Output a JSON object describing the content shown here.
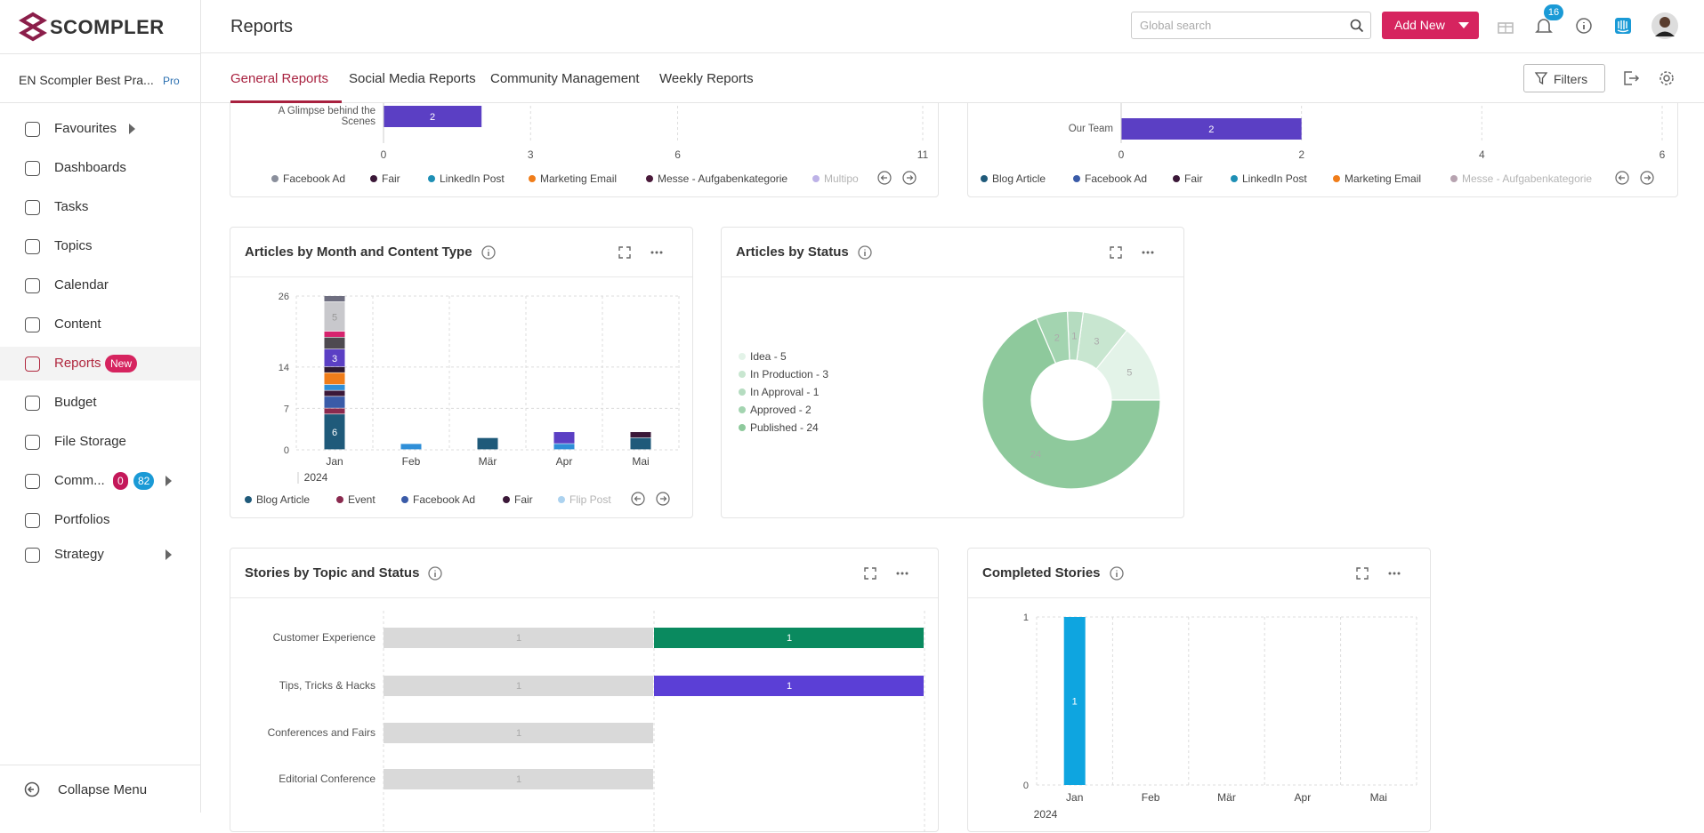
{
  "header": {
    "logo": "SCOMPLER",
    "title": "Reports",
    "search_placeholder": "Global search",
    "add_button": "Add New",
    "notifications": 16
  },
  "workspace": {
    "name": "EN Scompler Best Pra...",
    "plan": "Pro"
  },
  "nav": [
    {
      "label": "Favourites"
    },
    {
      "label": "Dashboards"
    },
    {
      "label": "Tasks"
    },
    {
      "label": "Topics"
    },
    {
      "label": "Calendar"
    },
    {
      "label": "Content"
    },
    {
      "label": "Reports",
      "badge": "New"
    },
    {
      "label": "Budget"
    },
    {
      "label": "File Storage"
    },
    {
      "label": "Comm...",
      "badges": [
        0,
        82
      ]
    },
    {
      "label": "Portfolios"
    },
    {
      "label": "Strategy"
    }
  ],
  "collapse": "Collapse Menu",
  "tabs": [
    "General Reports",
    "Social Media Reports",
    "Community Management",
    "Weekly Reports"
  ],
  "filters": "Filters",
  "reports": [
    {
      "type": "hbar",
      "categories": [
        "A Glimpse behind the Scenes"
      ],
      "series": [
        {
          "color": "#5b3fc4",
          "values": [
            2
          ]
        }
      ],
      "xlim": [
        0,
        11
      ],
      "xticks": [
        0,
        3,
        6,
        11
      ],
      "legend": [
        {
          "name": "Facebook Ad",
          "color": "#8a8f9c"
        },
        {
          "name": "Fair",
          "color": "#3b1838"
        },
        {
          "name": "LinkedIn Post",
          "color": "#1e8fb5"
        },
        {
          "name": "Marketing Email",
          "color": "#f07d1a"
        },
        {
          "name": "Messe - Aufgabenkategorie",
          "color": "#4a1a3a"
        },
        {
          "name": "Multipo",
          "color": "#5b3fc4"
        }
      ]
    },
    {
      "type": "hbar",
      "categories": [
        "Our Team"
      ],
      "series": [
        {
          "color": "#5b3fc4",
          "values": [
            2
          ]
        }
      ],
      "xlim": [
        0,
        6
      ],
      "xticks": [
        0,
        2,
        4,
        6
      ],
      "legend": [
        {
          "name": "Blog Article",
          "color": "#1f5a7a"
        },
        {
          "name": "Facebook Ad",
          "color": "#3a5ba8"
        },
        {
          "name": "Fair",
          "color": "#3b1838"
        },
        {
          "name": "LinkedIn Post",
          "color": "#1e8fb5"
        },
        {
          "name": "Marketing Email",
          "color": "#f07d1a"
        },
        {
          "name": "Messe - Aufgabenkategorie",
          "color": "#4a1a3a"
        }
      ]
    },
    {
      "type": "stacked",
      "title": "Articles by Month and Content Type",
      "categories": [
        "Jan",
        "Feb",
        "Mär",
        "Apr",
        "Mai"
      ],
      "x_label": "2024",
      "ylim": [
        0,
        26
      ],
      "yticks": [
        0,
        7,
        14,
        26
      ],
      "series": [
        {
          "name": "Blog Article",
          "color": "#1f5a7a",
          "values": [
            6,
            null,
            2,
            null,
            2
          ]
        },
        {
          "name": "Event",
          "color": "#8a2a4f",
          "values": [
            1,
            null,
            null,
            null,
            null
          ]
        },
        {
          "name": "Facebook Ad",
          "color": "#3a5ba8",
          "values": [
            2,
            null,
            null,
            null,
            null
          ]
        },
        {
          "name": "Fair",
          "color": "#3b1838",
          "values": [
            1,
            null,
            null,
            null,
            1
          ]
        },
        {
          "name": "Flip Post",
          "color": "#2f8fd8",
          "values": [
            1,
            1,
            null,
            1,
            null
          ]
        },
        {
          "color": "#f07d1a",
          "values": [
            2,
            null,
            null,
            null,
            null
          ]
        },
        {
          "color": "#2e1a30",
          "values": [
            1,
            null,
            null,
            null,
            null
          ]
        },
        {
          "color": "#5b3fc4",
          "values": [
            3,
            null,
            null,
            2,
            null
          ]
        },
        {
          "color": "#4e4a50",
          "values": [
            2,
            null,
            null,
            null,
            null
          ]
        },
        {
          "color": "#d6246e",
          "values": [
            1,
            null,
            null,
            null,
            null
          ]
        },
        {
          "color": "#c8c8cc",
          "values": [
            5,
            null,
            null,
            null,
            null
          ]
        },
        {
          "color": "#6e6e80",
          "values": [
            1,
            null,
            null,
            null,
            null
          ]
        }
      ]
    },
    {
      "type": "donut",
      "title": "Articles by Status",
      "categories": [
        "Idea - 5",
        "In Production - 3",
        "In Approval - 1",
        "Approved - 2",
        "Published - 24"
      ],
      "values": [
        5,
        3,
        1,
        2,
        24
      ],
      "colors": [
        "#e3f3e8",
        "#c8e6d0",
        "#b5dcc0",
        "#a3d4b0",
        "#8ec99c"
      ]
    },
    {
      "type": "hstacked",
      "title": "Stories by Topic and Status",
      "categories": [
        "Customer Experience",
        "Tips, Tricks & Hacks",
        "Conferences and Fairs",
        "Editorial Conference"
      ],
      "xlim": [
        0,
        2
      ],
      "series": [
        {
          "color": "#d9d9d9",
          "values": [
            1,
            1,
            1,
            1
          ]
        },
        {
          "colors": [
            "#0a8a5f",
            "#5b3fd6",
            null,
            null
          ],
          "values": [
            1,
            1,
            null,
            null
          ]
        }
      ]
    },
    {
      "type": "vbar",
      "title": "Completed Stories",
      "categories": [
        "Jan",
        "Feb",
        "Mär",
        "Apr",
        "Mai"
      ],
      "x_label": "2024",
      "ylim": [
        0,
        1
      ],
      "yticks": [
        0,
        1
      ],
      "color": "#0ea5e0",
      "values": [
        1,
        0,
        0,
        0,
        0
      ]
    }
  ]
}
